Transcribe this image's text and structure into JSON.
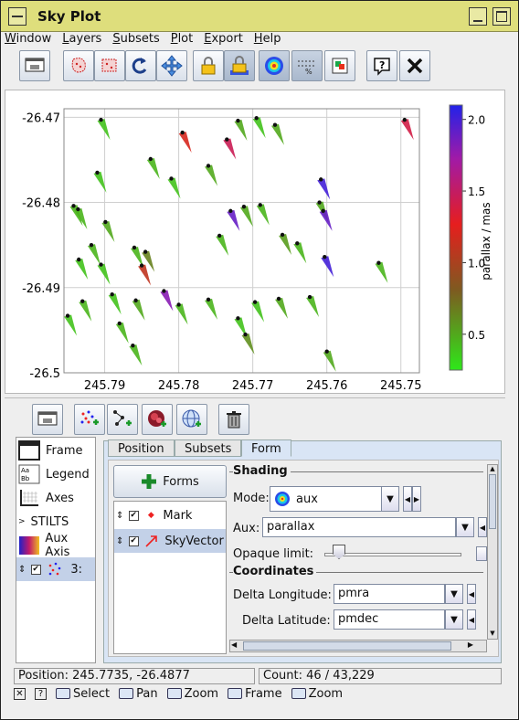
{
  "window": {
    "title": "Sky Plot"
  },
  "menu": [
    "Window",
    "Layers",
    "Subsets",
    "Plot",
    "Export",
    "Help"
  ],
  "toolbar_icons": [
    "window-icon",
    "blob-subset-icon",
    "region-subset-icon",
    "replot-icon",
    "navigate-icon",
    "axis-lock-icon",
    "shade-lock-icon",
    "progress-icon",
    "legend-grid-icon",
    "colour-icon",
    "help-icon",
    "close-icon"
  ],
  "plot": {
    "y_ticks": [
      "-26.47",
      "-26.48",
      "-26.49",
      "-26.5"
    ],
    "x_ticks": [
      "245.79",
      "245.78",
      "245.77",
      "245.76",
      "245.75"
    ],
    "colorbar_label": "parallax / mas",
    "colorbar_ticks": [
      "2.0",
      "1.5",
      "1.0",
      "0.5"
    ],
    "colorbar_range": [
      0.25,
      2.1
    ],
    "gradient": [
      "#2ee81a",
      "#7d5b20",
      "#e61e1e",
      "#a01aa8",
      "#2222e8"
    ]
  },
  "chart_data": {
    "type": "scatter",
    "xlabel": "",
    "ylabel": "",
    "xlim": [
      245.7955,
      245.7475
    ],
    "ylim": [
      -26.5,
      -26.469
    ],
    "colorbar": {
      "label": "parallax / mas",
      "range": [
        0.25,
        2.1
      ]
    },
    "points": [
      {
        "x": 245.7905,
        "y": -26.4703,
        "c": 0.4
      },
      {
        "x": 245.791,
        "y": -26.4765,
        "c": 0.4
      },
      {
        "x": 245.7838,
        "y": -26.4749,
        "c": 0.45
      },
      {
        "x": 245.781,
        "y": -26.4772,
        "c": 0.4
      },
      {
        "x": 245.7795,
        "y": -26.4718,
        "c": 1.2
      },
      {
        "x": 245.776,
        "y": -26.4757,
        "c": 0.5
      },
      {
        "x": 245.772,
        "y": -26.4704,
        "c": 0.5
      },
      {
        "x": 245.7735,
        "y": -26.4726,
        "c": 1.45
      },
      {
        "x": 245.7695,
        "y": -26.4701,
        "c": 0.4
      },
      {
        "x": 245.767,
        "y": -26.4709,
        "c": 0.5
      },
      {
        "x": 245.7495,
        "y": -26.4703,
        "c": 1.4
      },
      {
        "x": 245.7608,
        "y": -26.4773,
        "c": 2.0
      },
      {
        "x": 245.773,
        "y": -26.481,
        "c": 1.9
      },
      {
        "x": 245.7712,
        "y": -26.4805,
        "c": 0.5
      },
      {
        "x": 245.769,
        "y": -26.4803,
        "c": 0.45
      },
      {
        "x": 245.761,
        "y": -26.48,
        "c": 0.5
      },
      {
        "x": 245.7605,
        "y": -26.481,
        "c": 1.9
      },
      {
        "x": 245.7942,
        "y": -26.4804,
        "c": 0.45
      },
      {
        "x": 245.7936,
        "y": -26.4808,
        "c": 0.45
      },
      {
        "x": 245.7899,
        "y": -26.4823,
        "c": 0.5
      },
      {
        "x": 245.7745,
        "y": -26.4839,
        "c": 0.45
      },
      {
        "x": 245.766,
        "y": -26.4838,
        "c": 0.55
      },
      {
        "x": 245.764,
        "y": -26.4848,
        "c": 0.45
      },
      {
        "x": 245.7918,
        "y": -26.485,
        "c": 0.45
      },
      {
        "x": 245.786,
        "y": -26.4853,
        "c": 0.45
      },
      {
        "x": 245.7845,
        "y": -26.4858,
        "c": 0.65
      },
      {
        "x": 245.785,
        "y": -26.4874,
        "c": 1.1
      },
      {
        "x": 245.7935,
        "y": -26.4867,
        "c": 0.4
      },
      {
        "x": 245.7905,
        "y": -26.4873,
        "c": 0.4
      },
      {
        "x": 245.7603,
        "y": -26.4864,
        "c": 2.0
      },
      {
        "x": 245.753,
        "y": -26.4871,
        "c": 0.45
      },
      {
        "x": 245.789,
        "y": -26.4908,
        "c": 0.4
      },
      {
        "x": 245.78,
        "y": -26.492,
        "c": 0.45
      },
      {
        "x": 245.782,
        "y": -26.4904,
        "c": 1.8
      },
      {
        "x": 245.7858,
        "y": -26.4915,
        "c": 0.5
      },
      {
        "x": 245.776,
        "y": -26.4914,
        "c": 0.45
      },
      {
        "x": 245.7697,
        "y": -26.4917,
        "c": 0.4
      },
      {
        "x": 245.7665,
        "y": -26.4913,
        "c": 0.5
      },
      {
        "x": 245.7623,
        "y": -26.4911,
        "c": 0.45
      },
      {
        "x": 245.795,
        "y": -26.4933,
        "c": 0.4
      },
      {
        "x": 245.793,
        "y": -26.4916,
        "c": 0.45
      },
      {
        "x": 245.788,
        "y": -26.4942,
        "c": 0.45
      },
      {
        "x": 245.772,
        "y": -26.4936,
        "c": 0.4
      },
      {
        "x": 245.771,
        "y": -26.4955,
        "c": 0.6
      },
      {
        "x": 245.7862,
        "y": -26.4968,
        "c": 0.45
      },
      {
        "x": 245.76,
        "y": -26.4975,
        "c": 0.5
      }
    ]
  },
  "lower_toolbar_icons": [
    "control-window-icon",
    "add-points-icon",
    "add-pair-icon",
    "add-density-icon",
    "add-sky-grid-icon",
    "delete-icon"
  ],
  "control_list": [
    {
      "label": "Frame",
      "icon": "frame-icon"
    },
    {
      "label": "Legend",
      "icon": "legend-icon"
    },
    {
      "label": "Axes",
      "icon": "axes-icon"
    },
    {
      "label": "STILTS",
      "icon": "stilts-icon"
    },
    {
      "label": "Aux Axis",
      "icon": "aux-axis-icon"
    },
    {
      "label": "3: ",
      "icon": "layer-icon"
    }
  ],
  "tabs": [
    "Position",
    "Subsets",
    "Form"
  ],
  "forms_button": "Forms",
  "form_layers": [
    {
      "label": "Mark"
    },
    {
      "label": "SkyVector"
    }
  ],
  "shading": {
    "section": "Shading",
    "mode_label": "Mode:",
    "mode_value": "aux",
    "aux_label": "Aux:",
    "aux_value": "parallax",
    "opaque_label": "Opaque limit:",
    "opaque_fraction": 0.06
  },
  "coordinates": {
    "section": "Coordinates",
    "dlon_label": "Delta Longitude:",
    "dlon_value": "pmra",
    "dlat_label": "Delta Latitude:",
    "dlat_value": "pmdec"
  },
  "status": {
    "position": "Position: 245.7735, -26.4877",
    "count": "Count: 46 / 43,229"
  },
  "footer": [
    {
      "label": "Select"
    },
    {
      "label": "Pan"
    },
    {
      "label": "Zoom"
    },
    {
      "label": "Frame"
    },
    {
      "label": "Zoom"
    }
  ],
  "colors": {
    "title_bar": "#dede7c",
    "selection": "#c3d1e8"
  }
}
